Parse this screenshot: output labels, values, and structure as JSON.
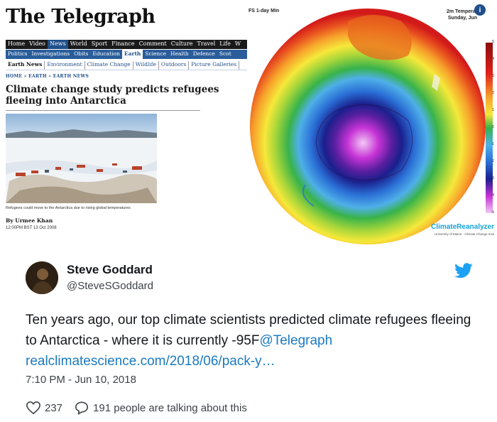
{
  "telegraph": {
    "logo": "The Telegraph",
    "nav_primary": [
      "Home",
      "Video",
      "News",
      "World",
      "Sport",
      "Finance",
      "Comment",
      "Culture",
      "Travel",
      "Life",
      "W"
    ],
    "nav_primary_active": "News",
    "nav_secondary": [
      "Politics",
      "Investigations",
      "Obits",
      "Education",
      "Earth",
      "Science",
      "Health",
      "Defence",
      "Scot"
    ],
    "nav_secondary_active": "Earth",
    "nav_tertiary": [
      "Earth News",
      "Environment",
      "Climate Change",
      "Wildlife",
      "Outdoors",
      "Picture Galleries"
    ],
    "nav_tertiary_active": "Earth News",
    "breadcrumb": "HOME » EARTH » EARTH NEWS",
    "headline": "Climate change study predicts refugees fleeing into Antarctica",
    "caption": "Refugees could move to the Antarctica due to rising global temperatures",
    "byline": "By Urmee Khan",
    "dateline": "12:00PM BST 13 Oct 2008"
  },
  "map": {
    "title_left": "FS 1-day Min",
    "title_right_line1": "2m Temperat",
    "title_right_line2": "Sunday, Jun",
    "logo_letter": "i",
    "brand": "ClimateReanalyzer",
    "brand_sub": "University of Maine · Climate Change Insti",
    "scale_labels": [
      "5",
      "4",
      "3",
      "2",
      "1",
      "0",
      "-1",
      "-2",
      "-3",
      "-4",
      "-5"
    ],
    "colors": {
      "hot": "#e0201a",
      "warm": "#f7a12b",
      "mild": "#f6e83a",
      "cool": "#38b34a",
      "cold": "#2a6fd6",
      "frigid": "#1a1f8c",
      "extreme": "#c633d6"
    }
  },
  "tweet": {
    "name": "Steve Goddard",
    "handle": "@SteveSGoddard",
    "text_plain": "Ten years ago, our top climate scientists predicted climate refugees fleeing to Antarctica - where it is currently -95F",
    "mention": "@Telegraph",
    "link": "realclimatescience.com/2018/06/pack-y…",
    "timestamp": "7:10 PM - Jun 10, 2018",
    "likes": "237",
    "replies": "191 people are talking about this",
    "brand_color": "#1da1f2"
  }
}
